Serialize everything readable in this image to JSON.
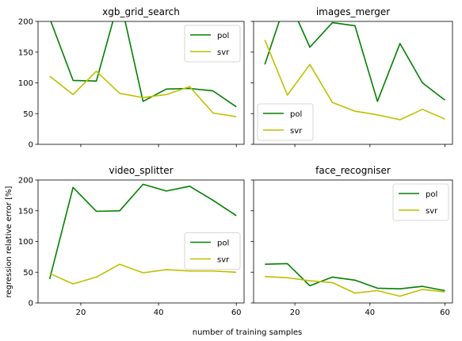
{
  "ylabel": "regression relative error [%]",
  "xlabel": "number of training samples",
  "colors": {
    "pol": "#008000",
    "svr": "#bfbf00"
  },
  "chart_data": [
    {
      "type": "line",
      "title": "xgb_grid_search",
      "x": [
        12,
        18,
        24,
        30,
        36,
        42,
        48,
        54,
        60
      ],
      "series": [
        {
          "name": "pol",
          "values": [
            205,
            104,
            103,
            240,
            70,
            90,
            91,
            87,
            61
          ]
        },
        {
          "name": "svr",
          "values": [
            111,
            81,
            119,
            83,
            76,
            81,
            94,
            51,
            45
          ]
        }
      ],
      "xlim": [
        9,
        62
      ],
      "ylim": [
        0,
        200
      ],
      "xticks": [
        20,
        40,
        60
      ],
      "yticks": [
        0,
        50,
        100,
        150,
        200
      ],
      "legend": "top-right"
    },
    {
      "type": "line",
      "title": "images_merger",
      "x": [
        12,
        18,
        24,
        30,
        36,
        42,
        48,
        54,
        60
      ],
      "series": [
        {
          "name": "pol",
          "values": [
            130,
            240,
            158,
            198,
            193,
            70,
            164,
            100,
            72
          ]
        },
        {
          "name": "svr",
          "values": [
            170,
            80,
            130,
            68,
            54,
            48,
            40,
            57,
            41
          ]
        }
      ],
      "xlim": [
        9,
        62
      ],
      "ylim": [
        0,
        200
      ],
      "xticks": [
        20,
        40,
        60
      ],
      "yticks": [
        0,
        50,
        100,
        150,
        200
      ],
      "legend": "bottom-left"
    },
    {
      "type": "line",
      "title": "video_splitter",
      "x": [
        12,
        18,
        24,
        30,
        36,
        42,
        48,
        54,
        60
      ],
      "series": [
        {
          "name": "pol",
          "values": [
            39,
            188,
            149,
            150,
            193,
            182,
            190,
            167,
            142
          ]
        },
        {
          "name": "svr",
          "values": [
            48,
            31,
            42,
            63,
            49,
            54,
            52,
            52,
            50
          ]
        }
      ],
      "xlim": [
        9,
        62
      ],
      "ylim": [
        0,
        200
      ],
      "xticks": [
        20,
        40,
        60
      ],
      "yticks": [
        0,
        50,
        100,
        150,
        200
      ],
      "legend": "center-right"
    },
    {
      "type": "line",
      "title": "face_recogniser",
      "x": [
        12,
        18,
        24,
        30,
        36,
        42,
        48,
        54,
        60
      ],
      "series": [
        {
          "name": "pol",
          "values": [
            63,
            64,
            28,
            42,
            37,
            24,
            23,
            27,
            20
          ]
        },
        {
          "name": "svr",
          "values": [
            43,
            41,
            36,
            33,
            16,
            20,
            11,
            22,
            18
          ]
        }
      ],
      "xlim": [
        9,
        62
      ],
      "ylim": [
        0,
        200
      ],
      "xticks": [
        20,
        40,
        60
      ],
      "yticks": [
        0,
        50,
        100,
        150,
        200
      ],
      "legend": "top-right"
    }
  ]
}
